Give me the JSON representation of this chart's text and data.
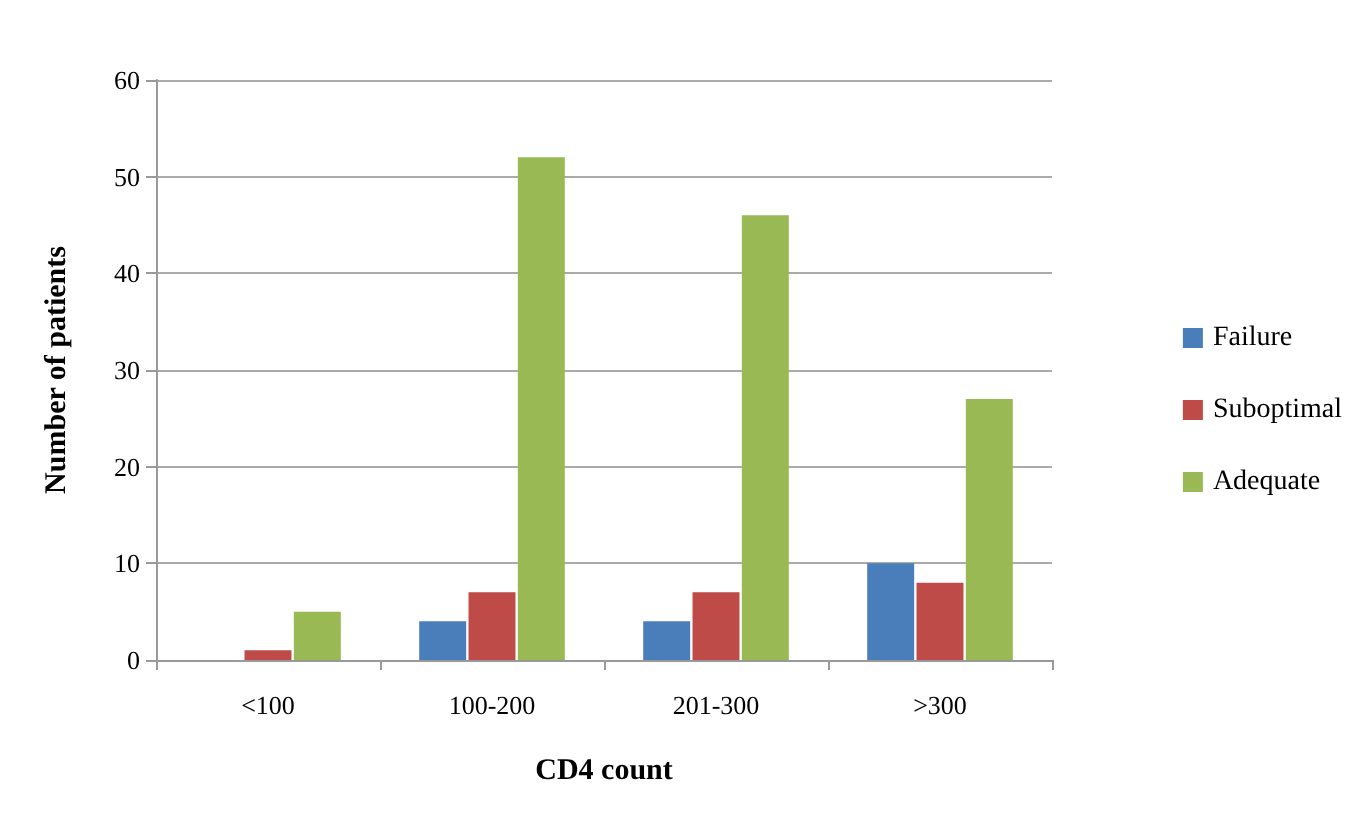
{
  "chart_data": {
    "type": "bar",
    "xlabel": "CD4 count",
    "ylabel": "Number of patients",
    "categories": [
      "<100",
      "100-200",
      "201-300",
      ">300"
    ],
    "series": [
      {
        "name": "Failure",
        "color": "#4a7ebb",
        "values": [
          0,
          4,
          4,
          10
        ]
      },
      {
        "name": "Suboptimal",
        "color": "#be4b48",
        "values": [
          1,
          7,
          7,
          8
        ]
      },
      {
        "name": "Adequate",
        "color": "#98b954",
        "values": [
          5,
          52,
          46,
          27
        ]
      }
    ],
    "ylim": [
      0,
      60
    ],
    "yticks": [
      0,
      10,
      20,
      30,
      40,
      50,
      60
    ],
    "grid": "y",
    "legend": "right"
  }
}
